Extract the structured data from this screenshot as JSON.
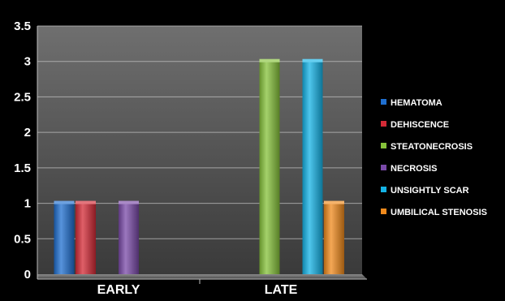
{
  "chart_data": {
    "type": "bar",
    "title": "",
    "xlabel": "",
    "ylabel": "",
    "ylim": [
      0,
      3.5
    ],
    "yticks": [
      0,
      0.5,
      1,
      1.5,
      2,
      2.5,
      3,
      3.5
    ],
    "ytick_labels": [
      "0",
      "0.5",
      "1",
      "1.5",
      "2",
      "2.5",
      "3",
      "3.5"
    ],
    "grid": true,
    "legend_position": "right",
    "categories": [
      "EARLY",
      "LATE"
    ],
    "series": [
      {
        "name": "HEMATOMA",
        "color": "#1f6fd0",
        "values": [
          1,
          0
        ]
      },
      {
        "name": "DEHISCENCE",
        "color": "#d42a36",
        "values": [
          1,
          0
        ]
      },
      {
        "name": "STEATONECROSIS",
        "color": "#86c23a",
        "values": [
          0,
          3
        ]
      },
      {
        "name": "NECROSIS",
        "color": "#7a4aa8",
        "values": [
          1,
          0
        ]
      },
      {
        "name": "UNSIGHTLY SCAR",
        "color": "#14b3e6",
        "values": [
          0,
          3
        ]
      },
      {
        "name": "UMBILICAL STENOSIS",
        "color": "#f08a1c",
        "values": [
          0,
          1
        ]
      }
    ]
  }
}
